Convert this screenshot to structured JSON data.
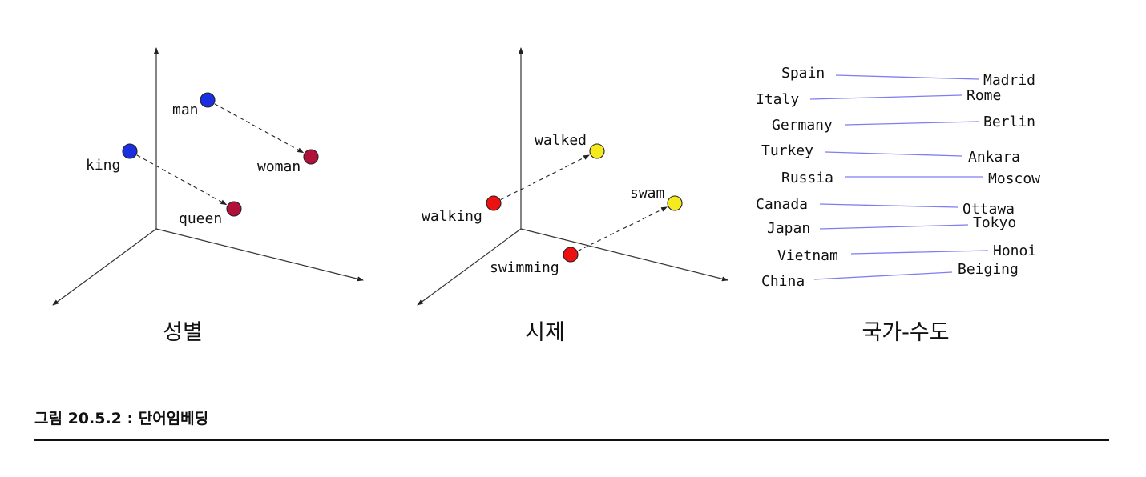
{
  "panels": [
    {
      "id": "gender",
      "caption": "성별",
      "words": [
        {
          "id": "man",
          "label": "man",
          "color": "#1a2fe0"
        },
        {
          "id": "woman",
          "label": "woman",
          "color": "#b0103a"
        },
        {
          "id": "king",
          "label": "king",
          "color": "#1a2fe0"
        },
        {
          "id": "queen",
          "label": "queen",
          "color": "#b0103a"
        }
      ],
      "relations": [
        {
          "from": "man",
          "to": "woman"
        },
        {
          "from": "king",
          "to": "queen"
        }
      ]
    },
    {
      "id": "tense",
      "caption": "시제",
      "words": [
        {
          "id": "walking",
          "label": "walking",
          "color": "#ee1111"
        },
        {
          "id": "walked",
          "label": "walked",
          "color": "#f5ea1e"
        },
        {
          "id": "swimming",
          "label": "swimming",
          "color": "#ee1111"
        },
        {
          "id": "swam",
          "label": "swam",
          "color": "#f5ea1e"
        }
      ],
      "relations": [
        {
          "from": "walking",
          "to": "walked"
        },
        {
          "from": "swimming",
          "to": "swam"
        }
      ]
    },
    {
      "id": "country-capital",
      "caption": "국가-수도",
      "line_color": "#7d7df5",
      "pairs": [
        {
          "country": "Spain",
          "capital": "Madrid"
        },
        {
          "country": "Italy",
          "capital": "Rome"
        },
        {
          "country": "Germany",
          "capital": "Berlin"
        },
        {
          "country": "Turkey",
          "capital": "Ankara"
        },
        {
          "country": "Russia",
          "capital": "Moscow"
        },
        {
          "country": "Canada",
          "capital": "Ottawa"
        },
        {
          "country": "Japan",
          "capital": "Tokyo"
        },
        {
          "country": "Vietnam",
          "capital": "Honoi"
        },
        {
          "country": "China",
          "capital": "Beiging"
        }
      ]
    }
  ],
  "figure_caption": "그림 20.5.2 : 단어임베딩"
}
